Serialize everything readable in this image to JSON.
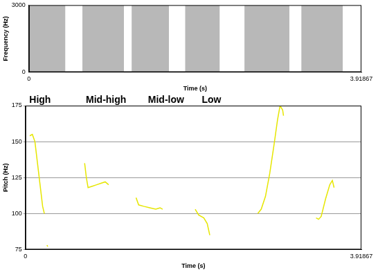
{
  "chart_data": [
    {
      "type": "area",
      "x_label": "Time (s)",
      "y_label": "Frequency (Hz)",
      "segments": [
        {
          "start": 0.0,
          "end": 0.43
        },
        {
          "start": 0.63,
          "end": 1.12
        },
        {
          "start": 1.21,
          "end": 1.65
        },
        {
          "start": 1.84,
          "end": 2.25
        },
        {
          "start": 2.54,
          "end": 3.07
        },
        {
          "start": 3.21,
          "end": 3.7
        }
      ],
      "color": "#b8b8b8",
      "xlim": [
        0,
        3.91867
      ],
      "xticks": [
        0,
        3.91867
      ],
      "ylim": [
        0,
        3000
      ],
      "yticks": [
        0,
        3000
      ],
      "grid": false
    },
    {
      "type": "line",
      "x_label": "Time (s)",
      "y_label": "Pitch (Hz)",
      "x": [
        0.05,
        0.08,
        0.11,
        0.14,
        0.17,
        0.2,
        0.22,
        0.235,
        0.25,
        0.26,
        0.5,
        0.69,
        0.71,
        0.73,
        0.78,
        0.83,
        0.88,
        0.93,
        0.97,
        1.1,
        1.29,
        1.32,
        1.38,
        1.45,
        1.52,
        1.57,
        1.6,
        1.8,
        1.98,
        2.02,
        2.08,
        2.12,
        2.15,
        2.4,
        2.71,
        2.75,
        2.8,
        2.85,
        2.9,
        2.94,
        2.97,
        3.0,
        3.01,
        3.2,
        3.39,
        3.42,
        3.45,
        3.5,
        3.55,
        3.58,
        3.6
      ],
      "values": [
        154,
        155,
        150,
        135,
        120,
        105,
        100,
        null,
        78,
        77,
        null,
        135,
        125,
        118,
        119,
        120,
        121,
        122,
        120,
        null,
        111,
        106,
        105,
        104,
        103,
        104,
        103,
        null,
        103,
        99,
        97,
        93,
        85,
        null,
        100,
        103,
        112,
        128,
        148,
        165,
        175,
        172,
        168,
        null,
        97,
        96,
        98,
        110,
        120,
        123,
        118
      ],
      "color": "#e6e600",
      "annotations": [
        {
          "text": "High",
          "x": 0.17
        },
        {
          "text": "Mid-high",
          "x": 0.94
        },
        {
          "text": "Mid-low",
          "x": 1.64
        },
        {
          "text": "Low",
          "x": 2.17
        }
      ],
      "xlim": [
        0,
        3.91867
      ],
      "xticks": [
        0,
        3.91867
      ],
      "ylim": [
        75,
        175
      ],
      "yticks": [
        75,
        100,
        125,
        150,
        175
      ],
      "grid": true
    }
  ]
}
